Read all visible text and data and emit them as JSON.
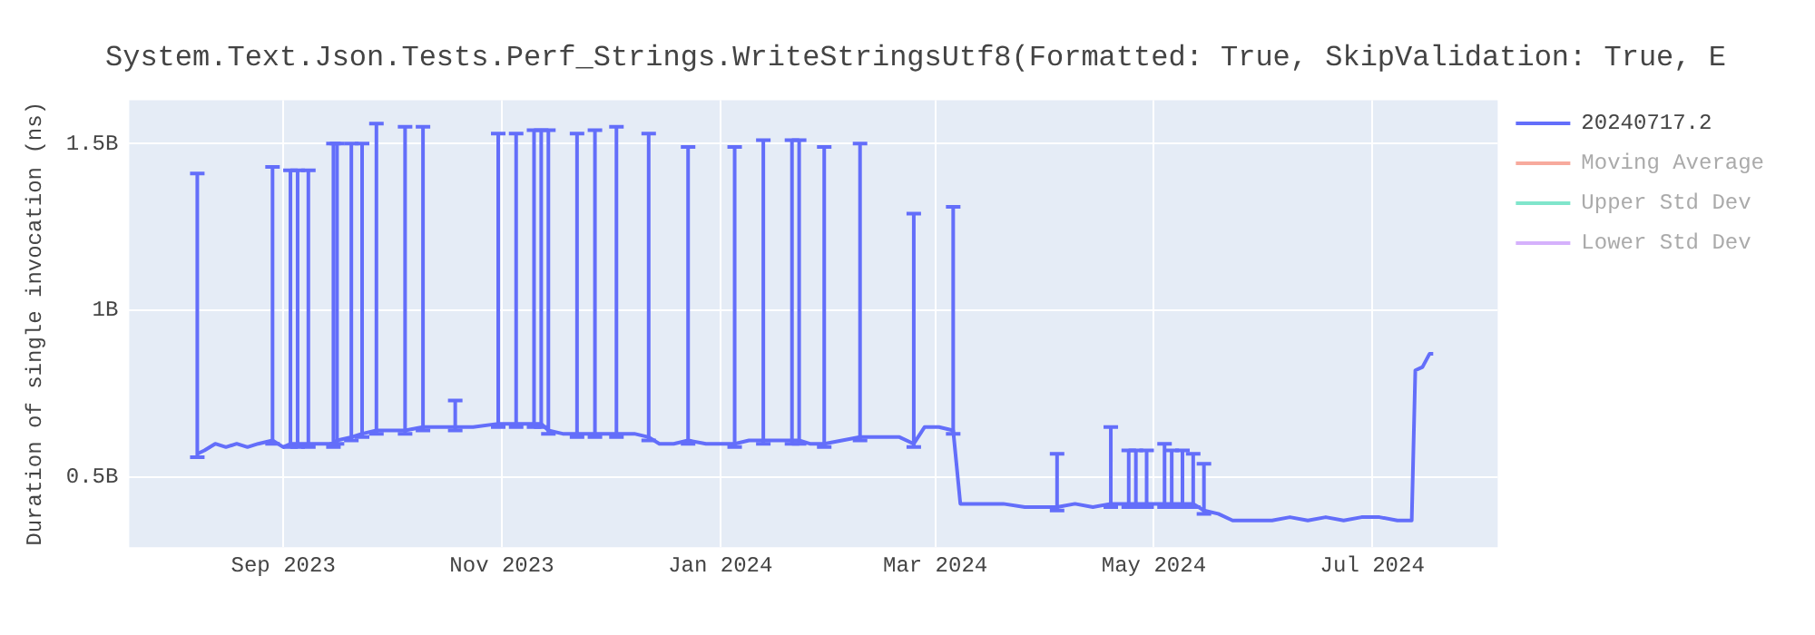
{
  "chart_data": {
    "type": "line",
    "title": "System.Text.Json.Tests.Perf_Strings.WriteStringsUtf8(Formatted: True, SkipValidation: True, E",
    "ylabel": "Duration of single invocation (ns)",
    "xlim": [
      "2023-07-20",
      "2024-08-05"
    ],
    "xticks": [
      {
        "value": "2023-09-01",
        "label": "Sep 2023"
      },
      {
        "value": "2023-11-01",
        "label": "Nov 2023"
      },
      {
        "value": "2024-01-01",
        "label": "Jan 2024"
      },
      {
        "value": "2024-03-01",
        "label": "Mar 2024"
      },
      {
        "value": "2024-05-01",
        "label": "May 2024"
      },
      {
        "value": "2024-07-01",
        "label": "Jul 2024"
      }
    ],
    "ylim": [
      290000000,
      1630000000
    ],
    "yticks": [
      {
        "value": 500000000,
        "label": "0.5B"
      },
      {
        "value": 1000000000,
        "label": "1B"
      },
      {
        "value": 1500000000,
        "label": "1.5B"
      }
    ],
    "grid": true,
    "legend": "top right",
    "marker": "none",
    "line_style": "solid",
    "series": [
      {
        "name": "20240717.2",
        "color": "#636efa",
        "x": [
          "2023-08-08",
          "2023-08-10",
          "2023-08-13",
          "2023-08-16",
          "2023-08-19",
          "2023-08-22",
          "2023-08-25",
          "2023-08-29",
          "2023-09-01",
          "2023-09-03",
          "2023-09-05",
          "2023-09-08",
          "2023-09-11",
          "2023-09-15",
          "2023-09-16",
          "2023-09-20",
          "2023-09-23",
          "2023-09-27",
          "2023-10-01",
          "2023-10-05",
          "2023-10-10",
          "2023-10-14",
          "2023-10-19",
          "2023-10-24",
          "2023-10-31",
          "2023-11-05",
          "2023-11-10",
          "2023-11-12",
          "2023-11-14",
          "2023-11-18",
          "2023-11-22",
          "2023-11-27",
          "2023-12-03",
          "2023-12-08",
          "2023-12-12",
          "2023-12-15",
          "2023-12-19",
          "2023-12-23",
          "2023-12-28",
          "2024-01-01",
          "2024-01-05",
          "2024-01-09",
          "2024-01-13",
          "2024-01-17",
          "2024-01-21",
          "2024-01-23",
          "2024-01-26",
          "2024-01-30",
          "2024-02-04",
          "2024-02-09",
          "2024-02-15",
          "2024-02-20",
          "2024-02-24",
          "2024-02-27",
          "2024-03-02",
          "2024-03-06",
          "2024-03-08",
          "2024-03-14",
          "2024-03-20",
          "2024-03-26",
          "2024-04-01",
          "2024-04-04",
          "2024-04-09",
          "2024-04-14",
          "2024-04-19",
          "2024-04-24",
          "2024-04-26",
          "2024-04-29",
          "2024-05-04",
          "2024-05-06",
          "2024-05-09",
          "2024-05-12",
          "2024-05-15",
          "2024-05-19",
          "2024-05-23",
          "2024-05-28",
          "2024-06-03",
          "2024-06-08",
          "2024-06-13",
          "2024-06-18",
          "2024-06-23",
          "2024-06-28",
          "2024-07-03",
          "2024-07-08",
          "2024-07-12",
          "2024-07-13",
          "2024-07-15",
          "2024-07-17",
          "2024-07-18"
        ],
        "values": [
          570000000,
          580000000,
          600000000,
          590000000,
          600000000,
          590000000,
          600000000,
          610000000,
          590000000,
          600000000,
          600000000,
          600000000,
          600000000,
          600000000,
          610000000,
          620000000,
          630000000,
          640000000,
          640000000,
          640000000,
          650000000,
          650000000,
          650000000,
          650000000,
          660000000,
          660000000,
          660000000,
          660000000,
          640000000,
          630000000,
          630000000,
          630000000,
          630000000,
          630000000,
          620000000,
          600000000,
          600000000,
          610000000,
          600000000,
          600000000,
          600000000,
          610000000,
          610000000,
          610000000,
          610000000,
          610000000,
          600000000,
          600000000,
          610000000,
          620000000,
          620000000,
          620000000,
          600000000,
          650000000,
          650000000,
          640000000,
          420000000,
          420000000,
          420000000,
          410000000,
          410000000,
          410000000,
          420000000,
          410000000,
          420000000,
          420000000,
          420000000,
          420000000,
          420000000,
          420000000,
          420000000,
          420000000,
          400000000,
          390000000,
          370000000,
          370000000,
          370000000,
          380000000,
          370000000,
          380000000,
          370000000,
          380000000,
          380000000,
          370000000,
          370000000,
          820000000,
          830000000,
          870000000,
          870000000
        ],
        "errors": [
          [
            560000000,
            1410000000
          ],
          null,
          null,
          null,
          null,
          null,
          null,
          [
            600000000,
            1430000000
          ],
          null,
          [
            590000000,
            1420000000
          ],
          [
            590000000,
            1420000000
          ],
          [
            590000000,
            1420000000
          ],
          null,
          [
            590000000,
            1500000000
          ],
          [
            600000000,
            1500000000
          ],
          [
            610000000,
            1500000000
          ],
          [
            620000000,
            1500000000
          ],
          [
            630000000,
            1560000000
          ],
          null,
          [
            630000000,
            1550000000
          ],
          [
            640000000,
            1550000000
          ],
          null,
          [
            640000000,
            730000000
          ],
          null,
          [
            650000000,
            1530000000
          ],
          [
            650000000,
            1530000000
          ],
          [
            650000000,
            1540000000
          ],
          [
            650000000,
            1540000000
          ],
          [
            630000000,
            1540000000
          ],
          null,
          [
            620000000,
            1530000000
          ],
          [
            620000000,
            1540000000
          ],
          [
            620000000,
            1550000000
          ],
          null,
          [
            610000000,
            1530000000
          ],
          null,
          null,
          [
            600000000,
            1490000000
          ],
          null,
          null,
          [
            590000000,
            1490000000
          ],
          null,
          [
            600000000,
            1510000000
          ],
          null,
          [
            600000000,
            1510000000
          ],
          [
            600000000,
            1510000000
          ],
          null,
          [
            590000000,
            1490000000
          ],
          null,
          [
            610000000,
            1500000000
          ],
          null,
          null,
          [
            590000000,
            1290000000
          ],
          null,
          null,
          [
            630000000,
            1310000000
          ],
          null,
          null,
          null,
          null,
          null,
          [
            400000000,
            570000000
          ],
          null,
          null,
          [
            410000000,
            650000000
          ],
          [
            410000000,
            580000000
          ],
          [
            410000000,
            580000000
          ],
          [
            410000000,
            580000000
          ],
          [
            410000000,
            600000000
          ],
          [
            410000000,
            580000000
          ],
          [
            410000000,
            580000000
          ],
          [
            410000000,
            570000000
          ],
          [
            390000000,
            540000000
          ],
          null,
          null,
          null,
          null,
          null,
          null,
          null,
          null,
          null,
          null,
          null,
          null,
          null,
          null,
          null,
          null
        ]
      },
      {
        "name": "Moving Average",
        "color": "#f7aa9d"
      },
      {
        "name": "Upper Std Dev",
        "color": "#80e5cb"
      },
      {
        "name": "Lower Std Dev",
        "color": "#d5b1fc"
      }
    ]
  }
}
